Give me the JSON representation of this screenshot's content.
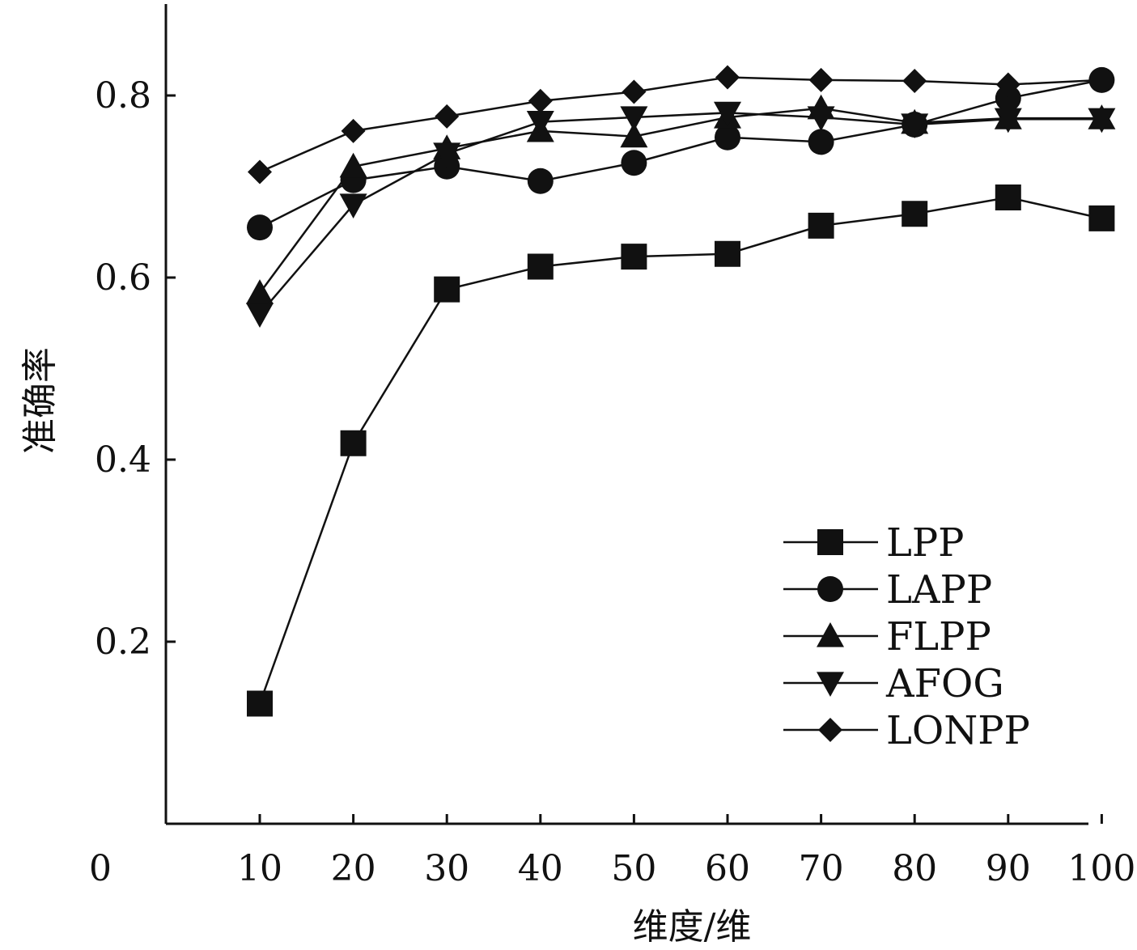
{
  "chart_data": {
    "type": "line",
    "title": "",
    "xlabel": "维度/维",
    "ylabel": "准确率",
    "x": [
      10,
      20,
      30,
      40,
      50,
      60,
      70,
      80,
      90,
      100
    ],
    "xticks": [
      "0",
      "10",
      "20",
      "30",
      "40",
      "50",
      "60",
      "70",
      "80",
      "90",
      "100"
    ],
    "yticks": [
      "0.2",
      "0.4",
      "0.6",
      "0.8"
    ],
    "xlim": [
      0,
      100
    ],
    "ylim": [
      0.0,
      0.9
    ],
    "grid": false,
    "legend_position": "bottom-right",
    "series": [
      {
        "name": "LPP",
        "marker": "square",
        "color": "#111111",
        "values": [
          0.132,
          0.418,
          0.587,
          0.612,
          0.623,
          0.626,
          0.657,
          0.67,
          0.688,
          0.665
        ]
      },
      {
        "name": "LAPP",
        "marker": "circle",
        "color": "#111111",
        "values": [
          0.655,
          0.707,
          0.722,
          0.706,
          0.726,
          0.754,
          0.749,
          0.768,
          0.797,
          0.817
        ]
      },
      {
        "name": "FLPP",
        "marker": "triangle-up",
        "color": "#111111",
        "values": [
          0.583,
          0.722,
          0.742,
          0.761,
          0.755,
          0.776,
          0.786,
          0.77,
          0.775,
          0.775
        ]
      },
      {
        "name": "AFOG",
        "marker": "triangle-down",
        "color": "#111111",
        "values": [
          0.56,
          0.68,
          0.736,
          0.771,
          0.776,
          0.781,
          0.776,
          0.768,
          0.774,
          0.774
        ]
      },
      {
        "name": "LONPP",
        "marker": "diamond",
        "color": "#111111",
        "values": [
          0.716,
          0.761,
          0.777,
          0.794,
          0.804,
          0.82,
          0.817,
          0.816,
          0.812,
          0.817
        ]
      }
    ]
  }
}
